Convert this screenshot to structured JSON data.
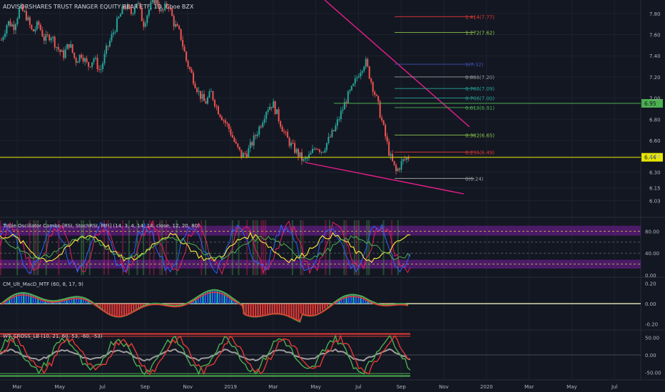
{
  "chart_data": [
    {
      "type": "candlestick",
      "title": "ADVISORSHARES TRUST RANGER EQUITY BEAR ETF, 1D, Cboe BZX",
      "yticks": [
        "7.80",
        "7.60",
        "7.40",
        "7.20",
        "7.00",
        "6.80",
        "6.60",
        "6.45",
        "6.30",
        "6.15",
        "6.03"
      ],
      "ylim": [
        6.0,
        7.9
      ],
      "price_tags": [
        {
          "label": "6.95",
          "value": 6.95,
          "color": "#4caf50"
        },
        {
          "label": "6.44",
          "value": 6.44,
          "color": "#e6e600"
        }
      ],
      "fib_levels": [
        {
          "label": "1.414(7.77)",
          "value": 7.77,
          "color": "#e53935"
        },
        {
          "label": "1.272(7.62)",
          "value": 7.62,
          "color": "#8bc34a"
        },
        {
          "label": "1(7.32)",
          "value": 7.32,
          "color": "#3f51b5"
        },
        {
          "label": "0.886(7.20)",
          "value": 7.2,
          "color": "#9e9e9e"
        },
        {
          "label": "0.786(7.09)",
          "value": 7.09,
          "color": "#26a69a"
        },
        {
          "label": "0.706(7.00)",
          "value": 7.0,
          "color": "#26a69a"
        },
        {
          "label": "0.618(6.91)",
          "value": 6.91,
          "color": "#4caf50"
        },
        {
          "label": "0.382(6.65)",
          "value": 6.65,
          "color": "#8bc34a"
        },
        {
          "label": "0.236(6.49)",
          "value": 6.49,
          "color": "#e53935"
        },
        {
          "label": "0(6.24)",
          "value": 6.24,
          "color": "#9e9e9e"
        }
      ],
      "xticks": [
        "Mar",
        "May",
        "Jul",
        "Sep",
        "Nov",
        "2019",
        "Mar",
        "May",
        "Jul",
        "Sep",
        "Nov",
        "2020",
        "Mar",
        "May",
        "Jul"
      ],
      "price_path": [
        7.55,
        7.72,
        7.68,
        7.85,
        7.78,
        7.62,
        7.7,
        7.55,
        7.6,
        7.48,
        7.4,
        7.52,
        7.35,
        7.42,
        7.3,
        7.38,
        7.25,
        7.45,
        7.6,
        7.75,
        7.88,
        7.8,
        7.92,
        7.7,
        7.85,
        7.95,
        7.8,
        7.9,
        7.7,
        7.6,
        7.35,
        7.2,
        7.05,
        6.95,
        7.05,
        6.9,
        6.8,
        6.7,
        6.55,
        6.45,
        6.5,
        6.62,
        6.75,
        6.9,
        6.95,
        6.8,
        6.65,
        6.55,
        6.48,
        6.4,
        6.45,
        6.55,
        6.5,
        6.6,
        6.7,
        6.85,
        7.0,
        7.1,
        7.25,
        7.35,
        7.15,
        6.95,
        6.7,
        6.45,
        6.3,
        6.4,
        6.44
      ]
    },
    {
      "type": "line",
      "title": "Triple Oscillator Combo [RSI, StochRSI, MFI] (14, 3, 4, 14, 14, close, 12, 20, 80)",
      "yticks": [
        "80.00",
        "40.00",
        "0.00"
      ],
      "ylim": [
        0,
        100
      ]
    },
    {
      "type": "line",
      "title": "CM_Ult_MacD_MTF (60, 8, 17, 9)",
      "yticks": [
        "0.20",
        "0.00",
        "-0.20"
      ],
      "ylim": [
        -0.24,
        0.24
      ]
    },
    {
      "type": "line",
      "title": "WT_CROSS_LB (10, 21, 60, 53, -60, -53)",
      "yticks": [
        "50.00",
        "0.00",
        "-50.00"
      ],
      "ylim": [
        -65,
        65
      ]
    }
  ]
}
